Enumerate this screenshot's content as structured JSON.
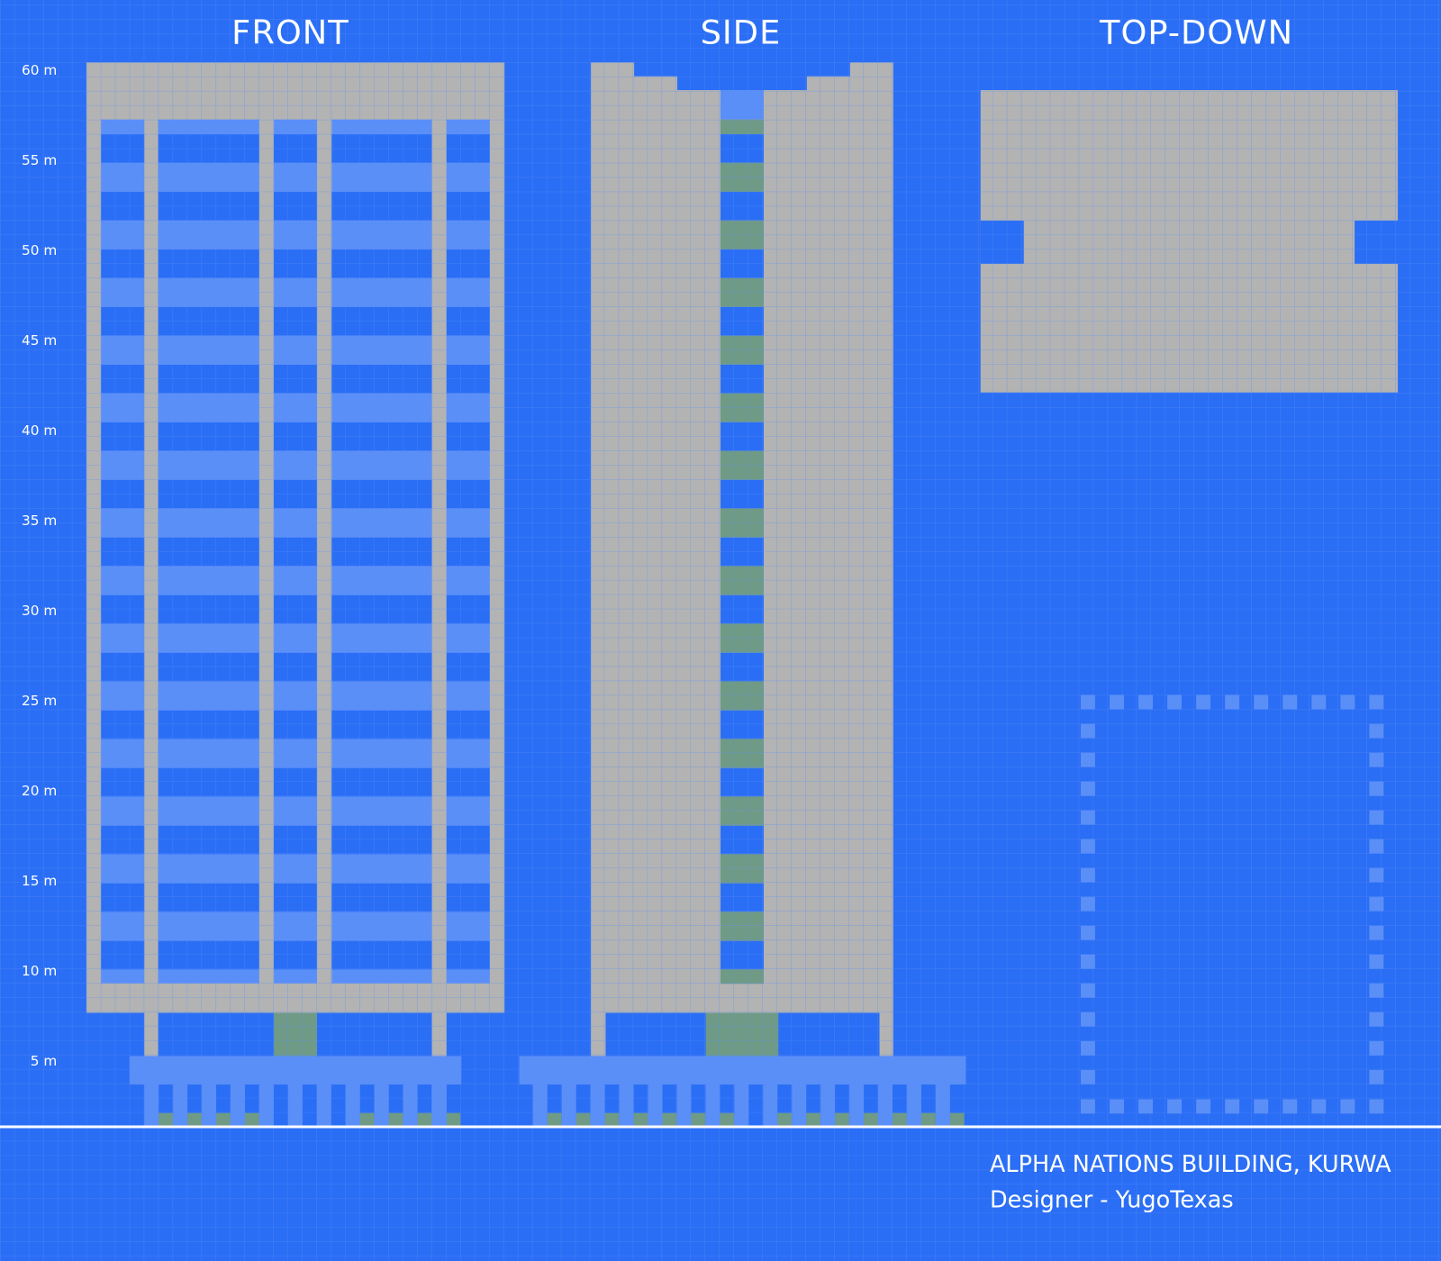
{
  "views": {
    "front": "FRONT",
    "side": "SIDE",
    "top": "TOP-DOWN"
  },
  "height_labels": [
    "60 m",
    "55 m",
    "50 m",
    "45 m",
    "40 m",
    "35 m",
    "30 m",
    "25 m",
    "20 m",
    "15 m",
    "10 m",
    "5 m"
  ],
  "caption": {
    "title": "ALPHA NATIONS BUILDING, KURWA",
    "designer": "Designer - YugoTexas"
  }
}
